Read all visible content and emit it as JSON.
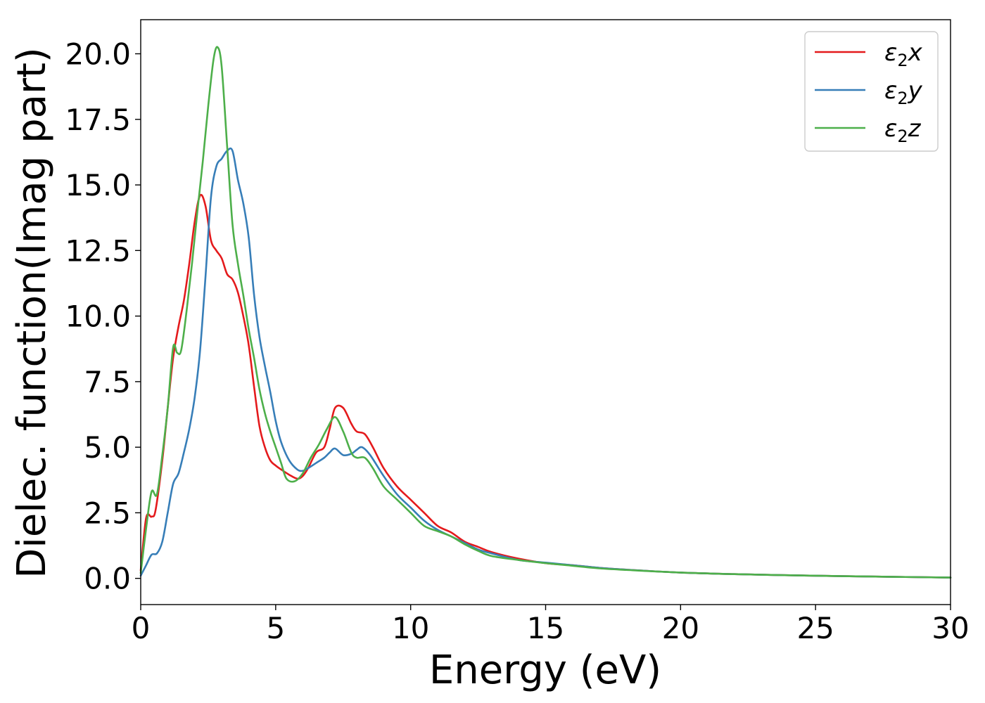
{
  "chart_data": {
    "type": "line",
    "title": "",
    "xlabel": "Energy (eV)",
    "ylabel": "Dielec. function(Imag part)",
    "xlim": [
      0,
      30
    ],
    "ylim": [
      -1.0,
      21.3
    ],
    "xticks": [
      0,
      5,
      10,
      15,
      20,
      25,
      30
    ],
    "xtick_labels": [
      "0",
      "5",
      "10",
      "15",
      "20",
      "25",
      "30"
    ],
    "yticks": [
      0,
      2.5,
      5,
      7.5,
      10,
      12.5,
      15,
      17.5,
      20
    ],
    "ytick_labels": [
      "0.0",
      "2.5",
      "5.0",
      "7.5",
      "10.0",
      "12.5",
      "15.0",
      "17.5",
      "20.0"
    ],
    "grid": false,
    "legend": "top-right",
    "series": [
      {
        "name": "ε₂x",
        "legend_base": "ε",
        "legend_sub": "2",
        "legend_tail": "x",
        "color": "#e41a1c",
        "x": [
          0,
          0.2,
          0.4,
          0.55,
          0.8,
          1.0,
          1.2,
          1.4,
          1.6,
          1.8,
          2.0,
          2.2,
          2.4,
          2.6,
          2.8,
          3.0,
          3.2,
          3.4,
          3.6,
          3.8,
          4.0,
          4.2,
          4.4,
          4.6,
          4.8,
          5.0,
          5.2,
          5.5,
          5.8,
          6.0,
          6.2,
          6.5,
          6.8,
          7.0,
          7.2,
          7.5,
          7.8,
          8.0,
          8.3,
          8.6,
          9.0,
          9.5,
          10.0,
          10.5,
          11.0,
          11.5,
          12.0,
          12.5,
          13.0,
          14.0,
          15.0,
          16.0,
          17.0,
          18.0,
          20.0,
          22.0,
          25.0,
          27.0,
          30.0
        ],
        "y": [
          0.3,
          2.3,
          2.35,
          2.6,
          4.5,
          6.5,
          8.4,
          9.6,
          10.6,
          12.0,
          13.6,
          14.6,
          14.2,
          12.9,
          12.5,
          12.2,
          11.6,
          11.4,
          10.9,
          10.0,
          8.9,
          7.3,
          5.8,
          5.0,
          4.5,
          4.3,
          4.15,
          3.95,
          3.8,
          3.9,
          4.2,
          4.8,
          5.0,
          5.7,
          6.5,
          6.5,
          5.9,
          5.6,
          5.5,
          5.0,
          4.2,
          3.5,
          3.0,
          2.5,
          2.0,
          1.75,
          1.4,
          1.2,
          1.0,
          0.75,
          0.58,
          0.5,
          0.4,
          0.33,
          0.22,
          0.16,
          0.1,
          0.07,
          0.03
        ]
      },
      {
        "name": "ε₂y",
        "legend_base": "ε",
        "legend_sub": "2",
        "legend_tail": "y",
        "color": "#377eb8",
        "x": [
          0,
          0.2,
          0.4,
          0.6,
          0.8,
          1.0,
          1.2,
          1.4,
          1.6,
          1.8,
          2.0,
          2.2,
          2.4,
          2.6,
          2.8,
          3.0,
          3.2,
          3.4,
          3.6,
          3.8,
          4.0,
          4.2,
          4.4,
          4.6,
          4.8,
          5.0,
          5.2,
          5.5,
          5.8,
          6.0,
          6.2,
          6.5,
          6.8,
          7.0,
          7.2,
          7.5,
          7.8,
          8.0,
          8.2,
          8.5,
          9.0,
          9.5,
          10.0,
          10.5,
          11.0,
          11.5,
          12.0,
          12.5,
          13.0,
          14.0,
          15.0,
          16.0,
          17.0,
          18.0,
          20.0,
          22.0,
          25.0,
          27.0,
          30.0
        ],
        "y": [
          0.1,
          0.5,
          0.9,
          0.95,
          1.4,
          2.5,
          3.6,
          4.0,
          4.8,
          5.7,
          6.9,
          8.7,
          11.5,
          14.5,
          15.7,
          16.0,
          16.3,
          16.3,
          15.2,
          14.3,
          13.0,
          10.8,
          9.2,
          8.1,
          7.1,
          6.0,
          5.2,
          4.5,
          4.15,
          4.1,
          4.2,
          4.4,
          4.6,
          4.8,
          4.95,
          4.7,
          4.75,
          4.9,
          5.0,
          4.7,
          3.9,
          3.2,
          2.7,
          2.2,
          1.85,
          1.6,
          1.35,
          1.1,
          0.95,
          0.7,
          0.6,
          0.5,
          0.4,
          0.33,
          0.22,
          0.16,
          0.1,
          0.07,
          0.03
        ]
      },
      {
        "name": "ε₂z",
        "legend_base": "ε",
        "legend_sub": "2",
        "legend_tail": "z",
        "color": "#4daf4a",
        "x": [
          0,
          0.2,
          0.4,
          0.6,
          0.8,
          1.0,
          1.2,
          1.35,
          1.5,
          1.7,
          1.9,
          2.1,
          2.3,
          2.5,
          2.7,
          2.85,
          3.0,
          3.2,
          3.4,
          3.6,
          3.8,
          4.0,
          4.2,
          4.4,
          4.6,
          4.8,
          5.0,
          5.2,
          5.4,
          5.7,
          6.0,
          6.3,
          6.6,
          6.9,
          7.2,
          7.5,
          7.8,
          8.0,
          8.3,
          8.6,
          9.0,
          9.5,
          10.0,
          10.5,
          11.0,
          11.5,
          12.0,
          12.5,
          13.0,
          14.0,
          15.0,
          16.0,
          17.0,
          18.0,
          20.0,
          22.0,
          25.0,
          27.0,
          30.0
        ],
        "y": [
          0.2,
          1.9,
          3.3,
          3.2,
          4.7,
          6.5,
          8.8,
          8.6,
          8.7,
          10.2,
          12.0,
          14.0,
          15.9,
          18.0,
          19.8,
          20.25,
          19.5,
          16.5,
          13.5,
          12.0,
          10.8,
          9.5,
          8.4,
          7.2,
          6.3,
          5.6,
          5.0,
          4.4,
          3.8,
          3.7,
          4.0,
          4.6,
          5.1,
          5.7,
          6.15,
          5.6,
          4.8,
          4.6,
          4.6,
          4.2,
          3.5,
          3.0,
          2.5,
          2.0,
          1.8,
          1.6,
          1.3,
          1.05,
          0.85,
          0.7,
          0.58,
          0.48,
          0.38,
          0.32,
          0.22,
          0.16,
          0.1,
          0.07,
          0.03
        ]
      }
    ]
  }
}
